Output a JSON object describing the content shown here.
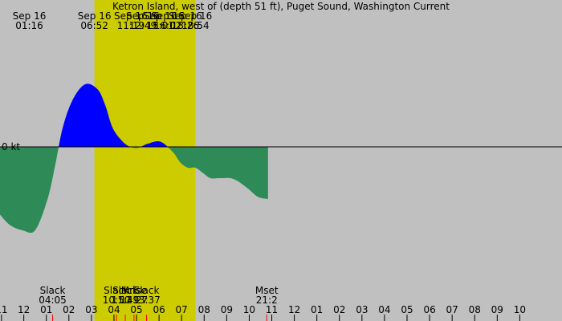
{
  "chart_data": {
    "type": "area",
    "title": "Ketron Island, west of (depth 51 ft), Puget Sound, Washington Current",
    "xlabel": "",
    "ylabel": "",
    "x_unit": "hour of day (Sep 16)",
    "y_unit": "kt",
    "xlim": [
      23.1,
      33.8
    ],
    "ylim": [
      -1.8,
      1.2
    ],
    "zero_label": "0 kt",
    "colors": {
      "night": "#c0c0c0",
      "day": "#cccc00",
      "flood": "#0000ff",
      "ebb": "#2e8b57",
      "moon_tick": "#ff0000"
    },
    "series": [
      {
        "x": [
          23.1,
          23.5,
          24.0,
          24.5,
          25.0,
          25.3,
          25.6,
          26.0,
          26.5,
          27.0,
          27.3,
          27.6,
          28.0,
          28.3,
          28.6,
          29.0,
          29.5,
          30.0,
          30.3,
          30.6,
          30.9,
          31.2,
          31.5,
          31.8,
          32.0,
          32.3,
          32.6,
          33.0,
          33.4,
          33.8
        ],
        "y": [
          -0.65,
          -0.75,
          -0.8,
          -0.8,
          -0.5,
          -0.18,
          0.18,
          0.45,
          0.6,
          0.55,
          0.4,
          0.18,
          0.05,
          0.0,
          -0.01,
          0.03,
          0.05,
          -0.05,
          -0.15,
          -0.2,
          -0.2,
          -0.25,
          -0.3,
          -0.3,
          -0.3,
          -0.3,
          -0.33,
          -0.4,
          -0.48,
          -0.5
        ]
      }
    ],
    "top_events": [
      {
        "date": "Sep 16",
        "time": "01:16",
        "x": 24.27
      },
      {
        "date": "Sep 16",
        "time": "06:52",
        "x": 26.87
      },
      {
        "date": "Sep 16",
        "time": "11:19",
        "x": 28.32
      },
      {
        "date": "Sep 16",
        "time": "12:49",
        "x": 28.8
      },
      {
        "date": "Sep 16",
        "time": "15:01",
        "x": 29.5
      },
      {
        "date": "Sep 16",
        "time": "16:02",
        "x": 29.8
      },
      {
        "date": "Sep 16",
        "time": "18:26",
        "x": 30.5
      },
      {
        "date": "Sep 16",
        "time": "18:54",
        "x": 30.9
      }
    ],
    "bottom_events": [
      {
        "label": "Slack",
        "time": "04:05",
        "x": 25.2
      },
      {
        "label": "Slack",
        "time": "10:50",
        "x": 27.75
      },
      {
        "label": "Slack",
        "time": "11:49",
        "x": 28.1
      },
      {
        "label": "Mrise",
        "time": "13:27",
        "x": 28.45
      },
      {
        "label": "Slack",
        "time": "13:37",
        "x": 28.95
      },
      {
        "label": "Mset",
        "time": "21:2",
        "x": 33.75
      }
    ],
    "day_band": [
      26.87,
      30.9
    ],
    "hour_ticks": [
      {
        "label": "11",
        "x": 23.16
      },
      {
        "label": "12",
        "x": 24.05
      },
      {
        "label": "01",
        "x": 24.95
      },
      {
        "label": "02",
        "x": 25.85
      },
      {
        "label": "03",
        "x": 26.75
      },
      {
        "label": "04",
        "x": 27.65
      },
      {
        "label": "05",
        "x": 28.55
      },
      {
        "label": "06",
        "x": 29.45
      },
      {
        "label": "07",
        "x": 30.35
      },
      {
        "label": "08",
        "x": 31.25
      },
      {
        "label": "09",
        "x": 32.15
      },
      {
        "label": "10",
        "x": 33.05
      },
      {
        "label": "11",
        "x": 33.95
      },
      {
        "label": "12",
        "x": 34.85
      },
      {
        "label": "01",
        "x": 35.75
      },
      {
        "label": "02",
        "x": 36.65
      },
      {
        "label": "03",
        "x": 37.55
      },
      {
        "label": "04",
        "x": 38.45
      },
      {
        "label": "05",
        "x": 39.35
      },
      {
        "label": "06",
        "x": 40.25
      },
      {
        "label": "07",
        "x": 41.15
      },
      {
        "label": "08",
        "x": 42.05
      },
      {
        "label": "09",
        "x": 42.95
      },
      {
        "label": "10",
        "x": 43.85
      }
    ],
    "grid": false,
    "legend": "none"
  }
}
